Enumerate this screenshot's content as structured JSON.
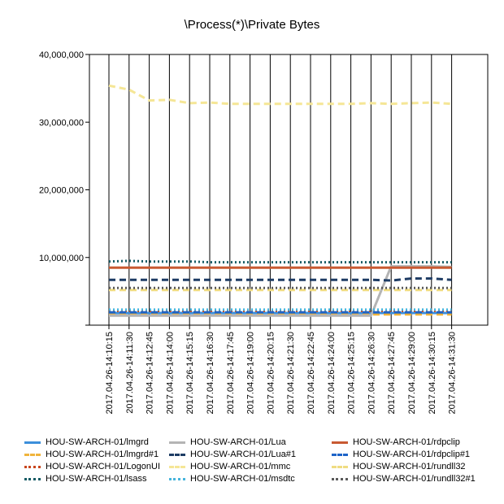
{
  "chart_data": {
    "type": "line",
    "title": "\\Process(*)\\Private Bytes",
    "xlabel": "",
    "ylabel": "",
    "ylim": [
      0,
      40000000
    ],
    "y_ticks": [
      0,
      10000000,
      20000000,
      30000000,
      40000000
    ],
    "y_tick_labels": [
      "",
      "10,000,000",
      "20,000,000",
      "30,000,000",
      "40,000,000"
    ],
    "grid": "vertical",
    "legend_position": "bottom",
    "categories": [
      "2017.04.26-14:10:15",
      "2017.04.26-14:11:30",
      "2017.04.26-14:12:45",
      "2017.04.26-14:14:00",
      "2017.04.26-14:15:15",
      "2017.04.26-14:16:30",
      "2017.04.26-14:17:45",
      "2017.04.26-14:19:00",
      "2017.04.26-14:20:15",
      "2017.04.26-14:21:30",
      "2017.04.26-14:22:45",
      "2017.04.26-14:24:00",
      "2017.04.26-14:25:15",
      "2017.04.26-14:26:30",
      "2017.04.26-14:27:45",
      "2017.04.26-14:29:00",
      "2017.04.26-14:30:15",
      "2017.04.26-14:31:30"
    ],
    "series": [
      {
        "name": "HOU-SW-ARCH-01/lmgrd",
        "color": "#3c8fdb",
        "dash": "solid",
        "values": [
          1800000,
          1800000,
          1800000,
          1800000,
          1800000,
          1800000,
          1800000,
          1800000,
          1800000,
          1800000,
          1800000,
          1800000,
          1800000,
          1800000,
          1800000,
          1800000,
          1800000,
          1800000
        ]
      },
      {
        "name": "HOU-SW-ARCH-01/lmgrd#1",
        "color": "#f0b43c",
        "dash": "dash",
        "values": [
          1600000,
          1600000,
          1600000,
          1600000,
          1600000,
          1600000,
          1600000,
          1600000,
          1600000,
          1600000,
          1600000,
          1600000,
          1600000,
          1600000,
          1600000,
          1600000,
          1600000,
          1600000
        ]
      },
      {
        "name": "HOU-SW-ARCH-01/LogonUI",
        "color": "#c8461e",
        "dash": "dot",
        "values": [
          2100000,
          2100000,
          2100000,
          2100000,
          2100000,
          2100000,
          2100000,
          2100000,
          2100000,
          2100000,
          2100000,
          2100000,
          2100000,
          2100000,
          2100000,
          2100000,
          2100000,
          2100000
        ]
      },
      {
        "name": "HOU-SW-ARCH-01/lsass",
        "color": "#145a64",
        "dash": "dot",
        "values": [
          9400000,
          9500000,
          9400000,
          9400000,
          9400000,
          9300000,
          9300000,
          9300000,
          9300000,
          9300000,
          9300000,
          9300000,
          9300000,
          9300000,
          9300000,
          9300000,
          9300000,
          9300000
        ]
      },
      {
        "name": "HOU-SW-ARCH-01/Lua",
        "color": "#b4b4b4",
        "dash": "solid",
        "values": [
          1400000,
          1400000,
          1400000,
          1400000,
          1400000,
          1400000,
          1400000,
          1400000,
          1400000,
          1400000,
          1400000,
          1400000,
          1400000,
          1400000,
          8700000,
          8700000,
          8700000,
          8600000
        ]
      },
      {
        "name": "HOU-SW-ARCH-01/Lua#1",
        "color": "#1e3c64",
        "dash": "dash",
        "values": [
          6700000,
          6700000,
          6700000,
          6700000,
          6700000,
          6700000,
          6700000,
          6700000,
          6700000,
          6700000,
          6700000,
          6700000,
          6700000,
          6700000,
          6600000,
          6900000,
          6900000,
          6700000
        ]
      },
      {
        "name": "HOU-SW-ARCH-01/mmc",
        "color": "#f5e696",
        "dash": "dash",
        "values": [
          35400000,
          34800000,
          33200000,
          33300000,
          32800000,
          32900000,
          32700000,
          32700000,
          32700000,
          32700000,
          32700000,
          32700000,
          32700000,
          32800000,
          32700000,
          32800000,
          32900000,
          32700000
        ]
      },
      {
        "name": "HOU-SW-ARCH-01/msdtc",
        "color": "#46b4dc",
        "dash": "dot",
        "values": [
          2300000,
          2300000,
          2300000,
          2300000,
          2300000,
          2300000,
          2300000,
          2300000,
          2300000,
          2300000,
          2300000,
          2300000,
          2300000,
          2300000,
          2300000,
          2300000,
          2300000,
          2300000
        ]
      },
      {
        "name": "HOU-SW-ARCH-01/rdpclip",
        "color": "#c85a32",
        "dash": "solid",
        "values": [
          8500000,
          8500000,
          8500000,
          8500000,
          8500000,
          8500000,
          8500000,
          8500000,
          8500000,
          8500000,
          8500000,
          8500000,
          8500000,
          8500000,
          8500000,
          8500000,
          8500000,
          8500000
        ]
      },
      {
        "name": "HOU-SW-ARCH-01/rdpclip#1",
        "color": "#1e64c8",
        "dash": "dash",
        "values": [
          1900000,
          1900000,
          1900000,
          1900000,
          1900000,
          1900000,
          1900000,
          1900000,
          1900000,
          1900000,
          1900000,
          1900000,
          1900000,
          1900000,
          1900000,
          1900000,
          1900000,
          1900000
        ]
      },
      {
        "name": "HOU-SW-ARCH-01/rundll32",
        "color": "#f0dc82",
        "dash": "dash",
        "values": [
          5200000,
          5200000,
          5200000,
          5200000,
          5200000,
          5200000,
          5200000,
          5200000,
          5200000,
          5200000,
          5200000,
          5200000,
          5200000,
          5200000,
          5200000,
          5200000,
          5200000,
          5200000
        ]
      },
      {
        "name": "HOU-SW-ARCH-01/rundll32#1",
        "color": "#5a5a5a",
        "dash": "dot",
        "values": [
          5500000,
          5500000,
          5500000,
          5500000,
          5500000,
          5500000,
          5500000,
          5500000,
          5500000,
          5500000,
          5500000,
          5500000,
          5500000,
          5500000,
          5500000,
          5500000,
          5500000,
          5500000
        ]
      }
    ]
  }
}
